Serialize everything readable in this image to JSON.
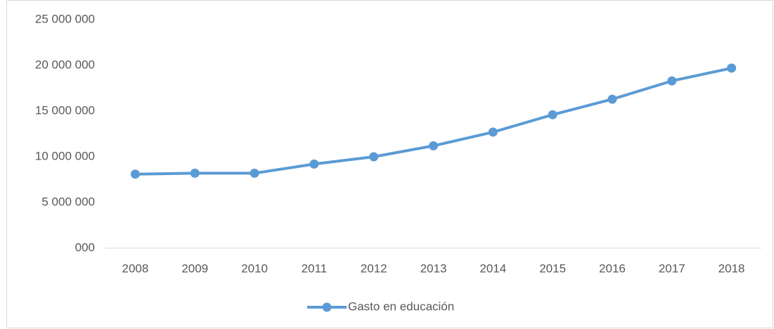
{
  "chart_data": {
    "type": "line",
    "categories": [
      "2008",
      "2009",
      "2010",
      "2011",
      "2012",
      "2013",
      "2014",
      "2015",
      "2016",
      "2017",
      "2018"
    ],
    "series": [
      {
        "name": "Gasto en educación",
        "color": "#5b9bd5",
        "values": [
          8100000,
          8200000,
          8200000,
          9200000,
          10000000,
          11200000,
          12700000,
          14600000,
          16300000,
          18300000,
          19700000
        ]
      }
    ],
    "ylim": [
      0,
      25000000
    ],
    "yticks": [
      {
        "value": 0,
        "label": "000"
      },
      {
        "value": 5000000,
        "label": "5 000 000"
      },
      {
        "value": 10000000,
        "label": "10 000 000"
      },
      {
        "value": 15000000,
        "label": "15 000 000"
      },
      {
        "value": 20000000,
        "label": "20 000 000"
      },
      {
        "value": 25000000,
        "label": "25 000 000"
      }
    ],
    "grid": false,
    "legend": "bottom"
  }
}
